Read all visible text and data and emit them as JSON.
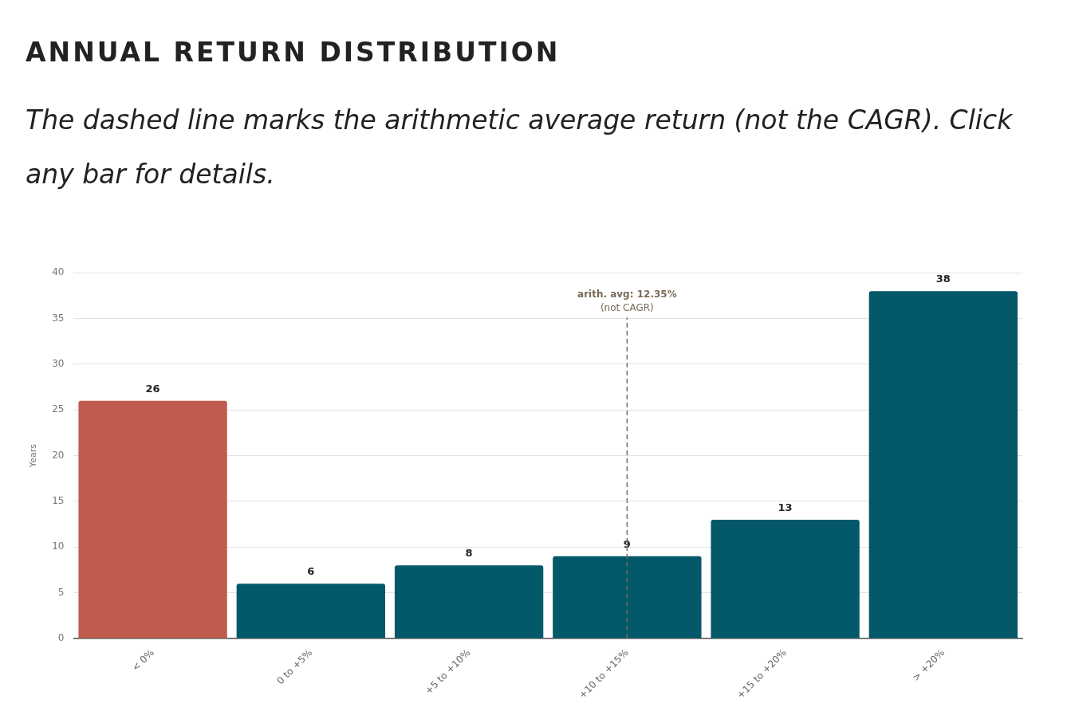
{
  "chart_data": {
    "type": "bar",
    "title": "ANNUAL RETURN DISTRIBUTION",
    "subtitle": "The dashed line marks the arithmetic average return (not the CAGR). Click any bar for details.",
    "ylabel": "Years",
    "categories": [
      "< 0%",
      "0 to +5%",
      "+5 to +10%",
      "+10 to +15%",
      "+15 to +20%",
      "> +20%"
    ],
    "values": [
      26,
      6,
      8,
      9,
      13,
      38
    ],
    "colors": [
      "#c05c4d",
      "#03596a",
      "#03596a",
      "#03596a",
      "#03596a",
      "#03596a"
    ],
    "ylim": [
      0,
      40
    ],
    "yticks": [
      0,
      5,
      10,
      15,
      20,
      25,
      30,
      35,
      40
    ],
    "grid": "y",
    "legend": false,
    "data_labels": true,
    "ref_lines": [
      {
        "axis": "x",
        "value": "+10 to +15%",
        "label": "arith. avg: 12.35%",
        "color": "#7a6a58",
        "line_style": "dashed"
      }
    ],
    "annotations": [
      "(not CAGR)"
    ]
  }
}
